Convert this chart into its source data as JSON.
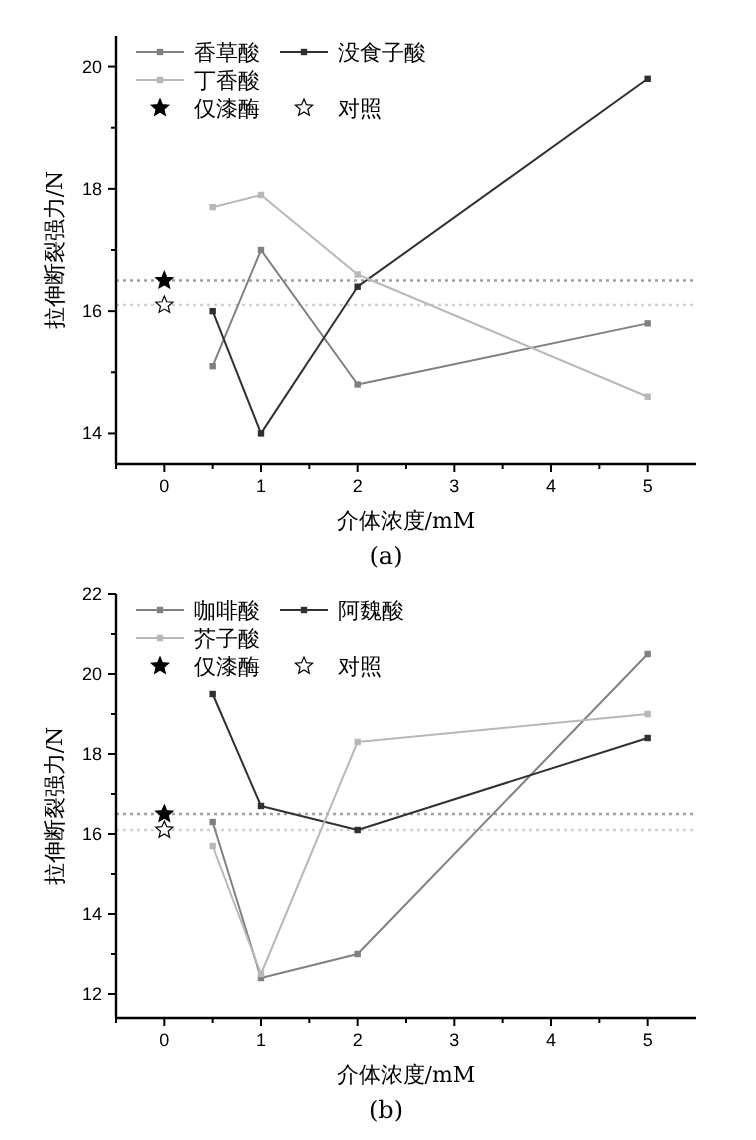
{
  "chart_data": [
    {
      "type": "line",
      "annotations": [
        "(a)"
      ],
      "xlabel": "介体浓度/mM",
      "ylabel": "拉伸断裂强力/N",
      "xlim": [
        -0.5,
        5.5
      ],
      "ylim": [
        13.5,
        20.5
      ],
      "xticks": [
        {
          "value": -0.5,
          "label": null
        },
        0,
        {
          "value": 0.5,
          "label": null
        },
        1,
        {
          "value": 1.5,
          "label": null
        },
        2,
        {
          "value": 2.5,
          "label": null
        },
        3,
        {
          "value": 3.5,
          "label": null
        },
        4,
        {
          "value": 4.5,
          "label": null
        },
        5
      ],
      "yticks": [
        14,
        {
          "value": 15,
          "label": null
        },
        16,
        {
          "value": 17,
          "label": null
        },
        18,
        {
          "value": 19,
          "label": null
        },
        20
      ],
      "legend": "top left",
      "grid": false,
      "marker": "square",
      "series": [
        {
          "name": "香草酸",
          "color": "#808080",
          "x": [
            0.5,
            1,
            2,
            5
          ],
          "values": [
            15.1,
            17.0,
            14.8,
            15.8
          ]
        },
        {
          "name": "没食子酸",
          "color": "#303030",
          "x": [
            0.5,
            1,
            2,
            5
          ],
          "values": [
            16.0,
            14.0,
            16.4,
            19.8
          ]
        },
        {
          "name": "丁香酸",
          "color": "#b8b8b8",
          "x": [
            0.5,
            1,
            2,
            5
          ],
          "values": [
            17.7,
            17.9,
            16.6,
            14.6
          ]
        },
        {
          "name": "仅漆酶",
          "type": "scatter",
          "marker": "star",
          "color": "#000000",
          "x": [
            0
          ],
          "values": [
            16.5
          ]
        },
        {
          "name": "对照",
          "type": "scatter",
          "marker": "star",
          "color": "#ffffff",
          "x": [
            0
          ],
          "values": [
            16.1
          ]
        }
      ],
      "ref_lines": [
        {
          "axis": "y",
          "value": 16.5,
          "label": null,
          "color": "#a0a0a0",
          "line_style": "dotted"
        },
        {
          "axis": "y",
          "value": 16.1,
          "label": null,
          "color": "#d0d0d0",
          "line_style": "dotted"
        }
      ]
    },
    {
      "type": "line",
      "annotations": [
        "(b)"
      ],
      "xlabel": "介体浓度/mM",
      "ylabel": "拉伸断裂强力/N",
      "xlim": [
        -0.5,
        5.5
      ],
      "ylim": [
        11.4,
        22
      ],
      "xticks": [
        {
          "value": -0.5,
          "label": null
        },
        0,
        {
          "value": 0.5,
          "label": null
        },
        1,
        {
          "value": 1.5,
          "label": null
        },
        2,
        {
          "value": 2.5,
          "label": null
        },
        3,
        {
          "value": 3.5,
          "label": null
        },
        4,
        {
          "value": 4.5,
          "label": null
        },
        5
      ],
      "yticks": [
        12,
        {
          "value": 13,
          "label": null
        },
        14,
        {
          "value": 15,
          "label": null
        },
        16,
        {
          "value": 17,
          "label": null
        },
        18,
        {
          "value": 19,
          "label": null
        },
        20,
        {
          "value": 21,
          "label": null
        },
        22
      ],
      "legend": "top left",
      "grid": false,
      "marker": "square",
      "series": [
        {
          "name": "咖啡酸",
          "color": "#808080",
          "x": [
            0.5,
            1,
            2,
            5
          ],
          "values": [
            16.3,
            12.4,
            13.0,
            20.5
          ]
        },
        {
          "name": "阿魏酸",
          "color": "#303030",
          "x": [
            0.5,
            1,
            2,
            5
          ],
          "values": [
            19.5,
            16.7,
            16.1,
            18.4
          ]
        },
        {
          "name": "芥子酸",
          "color": "#b8b8b8",
          "x": [
            0.5,
            1,
            2,
            5
          ],
          "values": [
            15.7,
            12.5,
            18.3,
            19.0
          ]
        },
        {
          "name": "仅漆酶",
          "type": "scatter",
          "marker": "star",
          "color": "#000000",
          "x": [
            0
          ],
          "values": [
            16.5
          ]
        },
        {
          "name": "对照",
          "type": "scatter",
          "marker": "star",
          "color": "#ffffff",
          "x": [
            0
          ],
          "values": [
            16.1
          ]
        }
      ],
      "ref_lines": [
        {
          "axis": "y",
          "value": 16.5,
          "label": null,
          "color": "#a0a0a0",
          "line_style": "dotted"
        },
        {
          "axis": "y",
          "value": 16.1,
          "label": null,
          "color": "#d0d0d0",
          "line_style": "dotted"
        }
      ]
    }
  ]
}
